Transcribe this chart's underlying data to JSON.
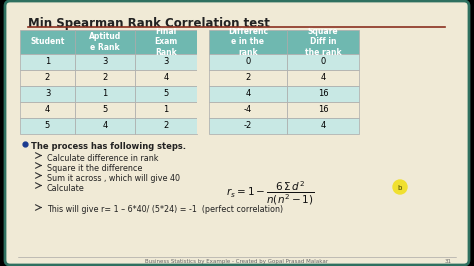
{
  "title": "Min Spearman Rank Correlation test",
  "title_color": "#222222",
  "title_underline_color": "#8B3020",
  "bg_color": "#f0ead6",
  "outer_border_color": "#2e7060",
  "table_headers": [
    "Student",
    "Aptitud\ne Rank",
    "Final\nExam\nRank",
    "Differenc\ne in the\nrank",
    "Square\nDiff in\nthe rank"
  ],
  "table_data": [
    [
      "1",
      "3",
      "3",
      "0",
      "0"
    ],
    [
      "2",
      "2",
      "4",
      "2",
      "4"
    ],
    [
      "3",
      "1",
      "5",
      "4",
      "16"
    ],
    [
      "4",
      "5",
      "1",
      "-4",
      "16"
    ],
    [
      "5",
      "4",
      "2",
      "-2",
      "4"
    ]
  ],
  "header_bg": "#6fb8b0",
  "row_alt_bg": "#c8e8e4",
  "row_plain_bg": "#f0ead6",
  "highlight_col_bg": "#a8d8d4",
  "bullet_color": "#1a3a8f",
  "arrow_color": "#4a4a4a",
  "process_text": "The process has following steps.",
  "steps": [
    "Calculate difference in rank",
    "Square it the difference",
    "Sum it across , which will give 40",
    "Calculate"
  ],
  "result_text": "This will give r= 1 – 6*40/ (5*24) = -1  (perfect correlation)",
  "footer_text": "Business Statistics by Example - Created by Gopal Prasad Malakar",
  "footer_color": "#666666",
  "page_num": "31",
  "yellow_circle_color": "#f0e030"
}
